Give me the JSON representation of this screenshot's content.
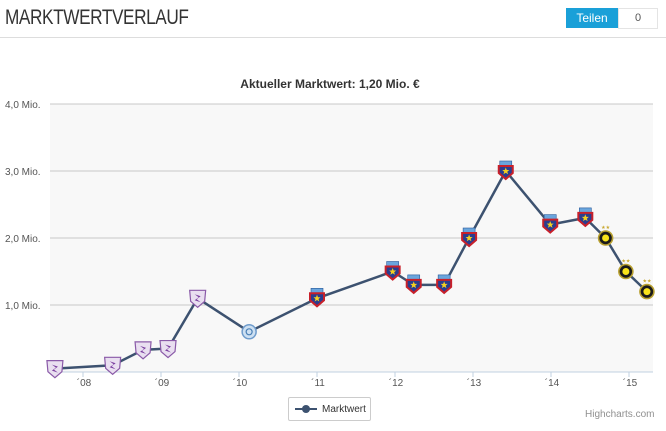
{
  "header": {
    "title": "MARKTWERTVERLAUF",
    "share_label": "Teilen",
    "share_count": "0"
  },
  "colors": {
    "accent": "#1aa0d8",
    "line": "#3d5270",
    "plot_bg": "#f8f8f8",
    "grid": "#c8c8c8"
  },
  "chart_data": {
    "type": "line",
    "title": "Aktueller Marktwert: 1,20 Mio. €",
    "xlabel": "",
    "ylabel": "",
    "ylim": [
      0,
      4
    ],
    "xlim": [
      2007.6,
      2015.3
    ],
    "y_ticks": [
      {
        "v": 1,
        "label": "1,0 Mio."
      },
      {
        "v": 2,
        "label": "2,0 Mio."
      },
      {
        "v": 3,
        "label": "3,0 Mio."
      },
      {
        "v": 4,
        "label": "4,0 Mio."
      }
    ],
    "x_ticks": [
      {
        "v": 2008,
        "label": "´08"
      },
      {
        "v": 2009,
        "label": "´09"
      },
      {
        "v": 2010,
        "label": "´10"
      },
      {
        "v": 2011,
        "label": "´11"
      },
      {
        "v": 2012,
        "label": "´12"
      },
      {
        "v": 2013,
        "label": "´13"
      },
      {
        "v": 2014,
        "label": "´14"
      },
      {
        "v": 2015,
        "label": "´15"
      }
    ],
    "grid": true,
    "legend": {
      "position": "bottom-center",
      "label": "Marktwert"
    },
    "credit": "Highcharts.com",
    "series": [
      {
        "name": "Marktwert",
        "points": [
          {
            "x": 2007.64,
            "y": 0.05,
            "marker": "purple-shield-crest"
          },
          {
            "x": 2008.38,
            "y": 0.1,
            "marker": "purple-shield-crest"
          },
          {
            "x": 2008.77,
            "y": 0.33,
            "marker": "purple-shield-crest"
          },
          {
            "x": 2009.09,
            "y": 0.35,
            "marker": "purple-shield-crest"
          },
          {
            "x": 2009.47,
            "y": 1.1,
            "marker": "purple-shield-crest"
          },
          {
            "x": 2010.13,
            "y": 0.6,
            "marker": "blue-round-crest"
          },
          {
            "x": 2011.0,
            "y": 1.1,
            "marker": "red-blue-star-crest"
          },
          {
            "x": 2011.97,
            "y": 1.5,
            "marker": "red-blue-star-crest"
          },
          {
            "x": 2012.24,
            "y": 1.3,
            "marker": "red-blue-star-crest"
          },
          {
            "x": 2012.63,
            "y": 1.3,
            "marker": "red-blue-star-crest"
          },
          {
            "x": 2012.95,
            "y": 2.0,
            "marker": "red-blue-star-crest"
          },
          {
            "x": 2013.42,
            "y": 3.0,
            "marker": "red-blue-star-crest"
          },
          {
            "x": 2013.99,
            "y": 2.2,
            "marker": "red-blue-star-crest"
          },
          {
            "x": 2014.44,
            "y": 2.3,
            "marker": "red-blue-star-crest"
          },
          {
            "x": 2014.7,
            "y": 2.0,
            "marker": "black-yellow-sun-crest"
          },
          {
            "x": 2014.96,
            "y": 1.5,
            "marker": "black-yellow-sun-crest"
          },
          {
            "x": 2015.23,
            "y": 1.2,
            "marker": "black-yellow-sun-crest"
          }
        ]
      }
    ]
  }
}
